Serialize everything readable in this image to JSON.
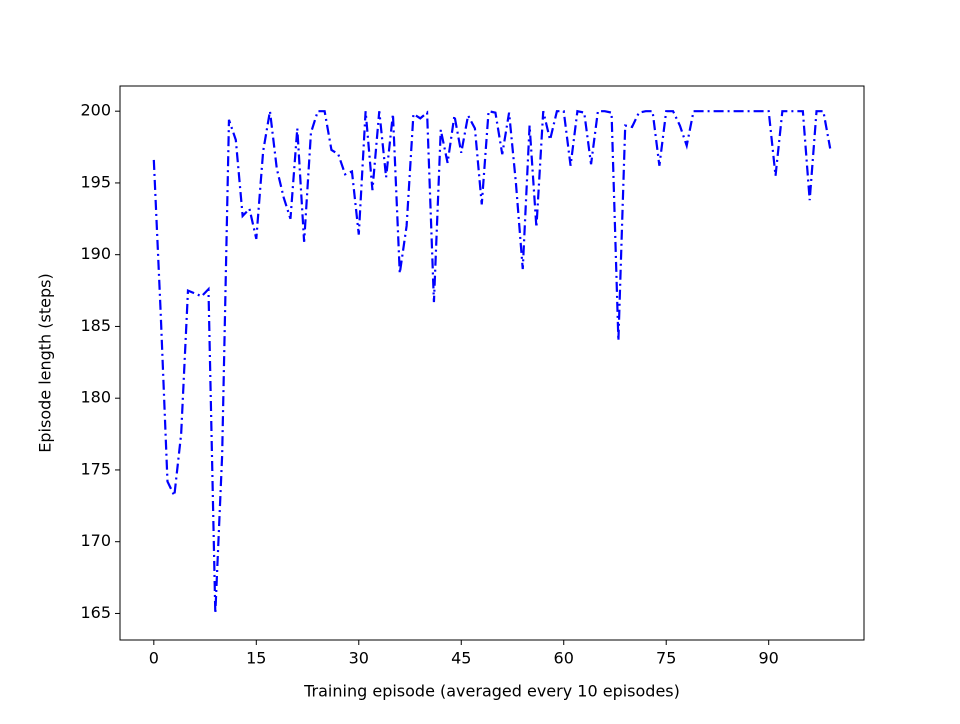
{
  "chart_data": {
    "type": "line",
    "x_label": "Training episode (averaged every 10 episodes)",
    "y_label": "Episode length (steps)",
    "x": [
      0,
      1,
      2,
      3,
      4,
      5,
      6,
      7,
      8,
      9,
      10,
      11,
      12,
      13,
      14,
      15,
      16,
      17,
      18,
      19,
      20,
      21,
      22,
      23,
      24,
      25,
      26,
      27,
      28,
      29,
      30,
      31,
      32,
      33,
      34,
      35,
      36,
      37,
      38,
      39,
      40,
      41,
      42,
      43,
      44,
      45,
      46,
      47,
      48,
      49,
      50,
      51,
      52,
      53,
      54,
      55,
      56,
      57,
      58,
      59,
      60,
      61,
      62,
      63,
      64,
      65,
      66,
      67,
      68,
      69,
      70,
      71,
      72,
      73,
      74,
      75,
      76,
      77,
      78,
      79,
      80,
      81,
      82,
      83,
      84,
      85,
      86,
      87,
      88,
      89,
      90,
      91,
      92,
      93,
      94,
      95,
      96,
      97,
      98,
      99
    ],
    "series": [
      {
        "color": "#0000ff",
        "values": [
          196.6,
          186,
          174.2,
          173.2,
          177.5,
          187.5,
          187.3,
          187.1,
          187.6,
          165,
          176,
          199.4,
          198,
          192.7,
          193.2,
          191.1,
          197.2,
          200,
          196,
          194,
          192.5,
          198.8,
          190.9,
          198.5,
          200,
          200,
          197.3,
          197,
          195.6,
          195.8,
          191.4,
          200,
          194.5,
          200,
          195.4,
          199.8,
          188.7,
          192,
          199.8,
          199.5,
          199.9,
          186.7,
          198.7,
          196.4,
          199.7,
          197.1,
          199.7,
          198.8,
          193.5,
          200,
          199.9,
          197,
          199.9,
          195,
          189,
          199,
          191.9,
          200,
          198,
          200,
          200,
          196.2,
          200,
          199.9,
          196.3,
          200,
          200,
          199.9,
          184,
          199,
          198.9,
          199.9,
          200,
          200,
          196.2,
          200,
          200,
          199,
          197.6,
          200,
          200,
          200,
          200,
          200,
          200,
          200,
          200,
          200,
          200,
          200,
          200,
          195.5,
          200,
          200,
          200,
          200,
          193.8,
          200,
          200,
          197.4
        ]
      }
    ],
    "xlim": [
      -4.95,
      103.95
    ],
    "ylim": [
      163.15,
      201.755
    ],
    "xticks": [
      0,
      15,
      30,
      45,
      60,
      75,
      90
    ],
    "yticks": [
      165,
      170,
      175,
      180,
      185,
      190,
      195,
      200
    ]
  }
}
